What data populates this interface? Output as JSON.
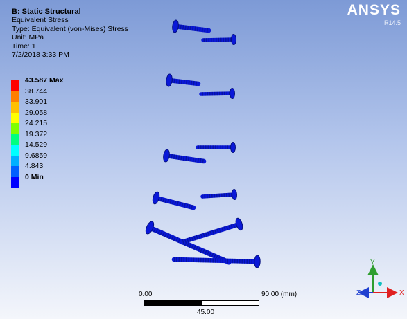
{
  "result_info": {
    "title": "B: Static Structural",
    "result": "Equivalent Stress",
    "type": "Type: Equivalent (von-Mises) Stress",
    "unit": "Unit: MPa",
    "time": "Time: 1",
    "date": "7/2/2018 3:33 PM"
  },
  "brand": {
    "name": "ANSYS",
    "version": "R14.5"
  },
  "legend": {
    "max_label": "43.587 Max",
    "min_label": "0 Min",
    "levels": [
      "38.744",
      "33.901",
      "29.058",
      "24.215",
      "19.372",
      "14.529",
      "9.6859",
      "4.843"
    ],
    "colors": [
      "#ff0000",
      "#ff7f00",
      "#ffc000",
      "#ffff00",
      "#7fff00",
      "#00ff7f",
      "#00ffff",
      "#00b0ff",
      "#0060ff",
      "#0000ff"
    ]
  },
  "scale_bar": {
    "start": "0.00",
    "end": "90.00 (mm)",
    "mid": "45.00"
  },
  "triad": {
    "x_label": "X",
    "y_label": "Y",
    "z_label": "Z"
  },
  "model": {
    "fill_color": "#0a18d8",
    "edge_color": "#051180"
  }
}
